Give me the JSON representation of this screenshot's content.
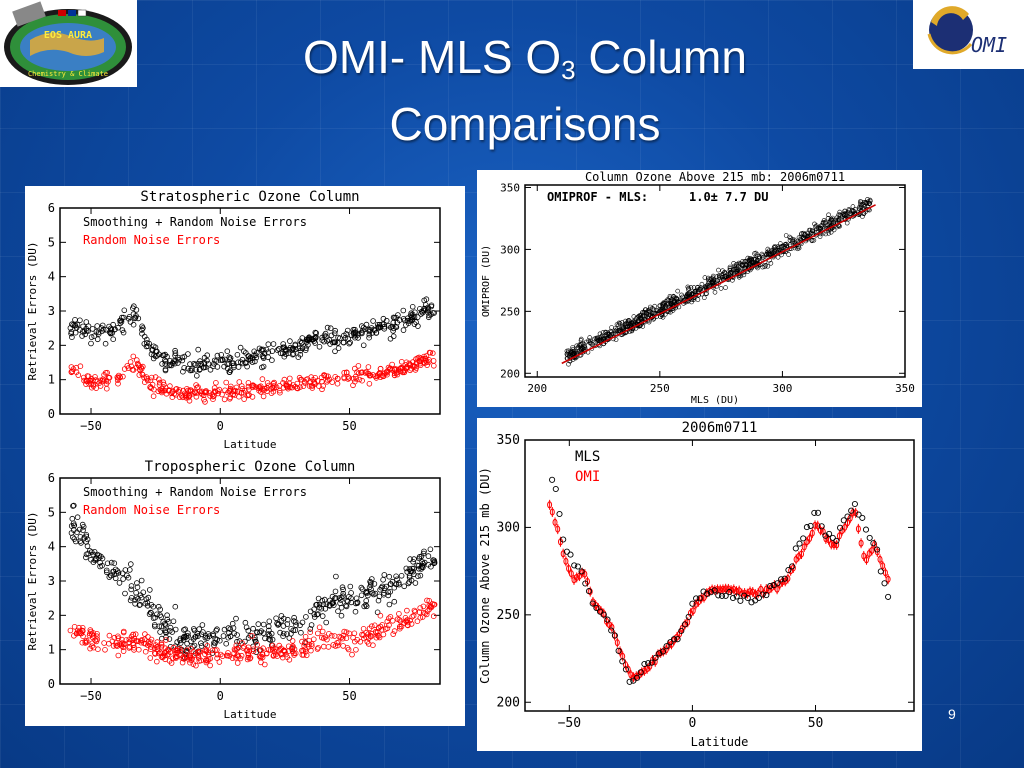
{
  "slide": {
    "title_main": "OMI- MLS O",
    "title_sub": "3",
    "title_tail": " Column",
    "title_line2": "Comparisons",
    "page_number": "9",
    "aura_logo_text": "EOS AURA",
    "aura_logo_subtext": "Chemistry & Climate",
    "omi_logo_text": "OMI"
  },
  "chart_data": [
    {
      "type": "scatter",
      "title": "Stratospheric Ozone Column",
      "xlabel": "Latitude",
      "ylabel": "Retrieval Errors (DU)",
      "xlim": [
        -62,
        85
      ],
      "ylim": [
        0,
        6
      ],
      "xticks": [
        -50,
        0,
        50
      ],
      "yticks": [
        0,
        1,
        2,
        3,
        4,
        5,
        6
      ],
      "legend_position": "top-left",
      "series": [
        {
          "name": "Smoothing + Random Noise Errors",
          "color": "#000000",
          "x": [
            -58,
            -50,
            -40,
            -33,
            -28,
            -22,
            -15,
            -10,
            -5,
            0,
            5,
            10,
            20,
            30,
            40,
            50,
            60,
            70,
            80
          ],
          "y": [
            2.5,
            2.4,
            2.5,
            2.9,
            2.0,
            1.6,
            1.4,
            1.4,
            1.45,
            1.5,
            1.5,
            1.6,
            1.8,
            2.0,
            2.2,
            2.3,
            2.5,
            2.7,
            3.0
          ]
        },
        {
          "name": "Random Noise Errors",
          "color": "#ff0000",
          "x": [
            -58,
            -50,
            -40,
            -33,
            -28,
            -22,
            -15,
            -10,
            -5,
            0,
            5,
            10,
            20,
            30,
            40,
            50,
            60,
            70,
            80
          ],
          "y": [
            1.3,
            0.9,
            1.0,
            1.5,
            0.9,
            0.7,
            0.6,
            0.6,
            0.6,
            0.65,
            0.65,
            0.7,
            0.75,
            0.85,
            1.0,
            1.1,
            1.2,
            1.3,
            1.6
          ]
        }
      ]
    },
    {
      "type": "scatter",
      "title": "Tropospheric Ozone Column",
      "xlabel": "Latitude",
      "ylabel": "Retrieval Errors (DU)",
      "xlim": [
        -62,
        85
      ],
      "ylim": [
        0,
        6
      ],
      "xticks": [
        -50,
        0,
        50
      ],
      "yticks": [
        0,
        1,
        2,
        3,
        4,
        5,
        6
      ],
      "legend_position": "top-left",
      "series": [
        {
          "name": "Smoothing + Random Noise Errors",
          "color": "#000000",
          "x": [
            -57,
            -50,
            -40,
            -30,
            -20,
            -15,
            -10,
            0,
            10,
            20,
            30,
            40,
            50,
            60,
            70,
            80
          ],
          "y": [
            4.7,
            3.8,
            3.2,
            2.5,
            1.6,
            1.3,
            1.3,
            1.4,
            1.4,
            1.5,
            1.7,
            2.3,
            2.5,
            2.7,
            3.0,
            3.6
          ]
        },
        {
          "name": "Random Noise Errors",
          "color": "#ff0000",
          "x": [
            -57,
            -50,
            -40,
            -30,
            -20,
            -15,
            -10,
            0,
            10,
            20,
            30,
            40,
            50,
            60,
            70,
            80
          ],
          "y": [
            1.5,
            1.3,
            1.2,
            1.2,
            0.9,
            0.8,
            0.8,
            0.85,
            0.9,
            0.95,
            1.0,
            1.2,
            1.3,
            1.5,
            1.8,
            2.2
          ]
        }
      ]
    },
    {
      "type": "scatter",
      "title": "Column Ozone Above 215 mb: 2006m0711",
      "annotation_label": "OMIPROF - MLS:",
      "annotation_value": "1.0± 7.7 DU",
      "xlabel": "MLS (DU)",
      "ylabel": "OMIPROF (DU)",
      "xlim": [
        195,
        350
      ],
      "ylim": [
        197,
        352
      ],
      "xticks": [
        200,
        250,
        300,
        350
      ],
      "yticks": [
        200,
        250,
        300,
        350
      ],
      "fit_line": {
        "x": [
          210,
          338
        ],
        "y": [
          208,
          336
        ],
        "color": "#cc0000"
      },
      "points": {
        "x_range": [
          212,
          336
        ],
        "spread": 7.7,
        "color": "#000000"
      }
    },
    {
      "type": "line",
      "title": "2006m0711",
      "xlabel": "Latitude",
      "ylabel": "Column Ozone Above 215 mb (DU)",
      "xlim": [
        -68,
        90
      ],
      "ylim": [
        195,
        350
      ],
      "xticks": [
        -50,
        0,
        50
      ],
      "yticks": [
        200,
        250,
        300,
        350
      ],
      "legend_position": "top-left",
      "series": [
        {
          "name": "MLS",
          "color": "#000000",
          "x": [
            -57,
            -55,
            -52,
            -48,
            -44,
            -40,
            -36,
            -32,
            -28,
            -25,
            -22,
            -18,
            -14,
            -10,
            -6,
            -2,
            2,
            6,
            10,
            14,
            18,
            22,
            26,
            30,
            34,
            38,
            42,
            46,
            50,
            54,
            58,
            62,
            66,
            70,
            74,
            78,
            80
          ],
          "y": [
            326,
            318,
            290,
            280,
            272,
            255,
            248,
            240,
            222,
            210,
            218,
            222,
            228,
            232,
            238,
            248,
            260,
            262,
            262,
            262,
            260,
            258,
            258,
            262,
            268,
            272,
            285,
            296,
            310,
            298,
            292,
            305,
            312,
            300,
            292,
            268,
            260
          ]
        },
        {
          "name": "OMI",
          "color": "#ff0000",
          "x": [
            -58,
            -55,
            -52,
            -48,
            -44,
            -40,
            -36,
            -32,
            -28,
            -25,
            -22,
            -18,
            -14,
            -10,
            -6,
            -2,
            2,
            6,
            10,
            14,
            18,
            22,
            26,
            30,
            34,
            38,
            42,
            46,
            50,
            54,
            58,
            62,
            66,
            70,
            74,
            78,
            80
          ],
          "y": [
            312,
            300,
            282,
            270,
            275,
            256,
            250,
            240,
            225,
            215,
            216,
            220,
            226,
            232,
            238,
            246,
            258,
            262,
            265,
            265,
            264,
            262,
            262,
            264,
            266,
            270,
            280,
            290,
            302,
            294,
            290,
            300,
            310,
            280,
            290,
            275,
            270
          ]
        }
      ]
    }
  ]
}
